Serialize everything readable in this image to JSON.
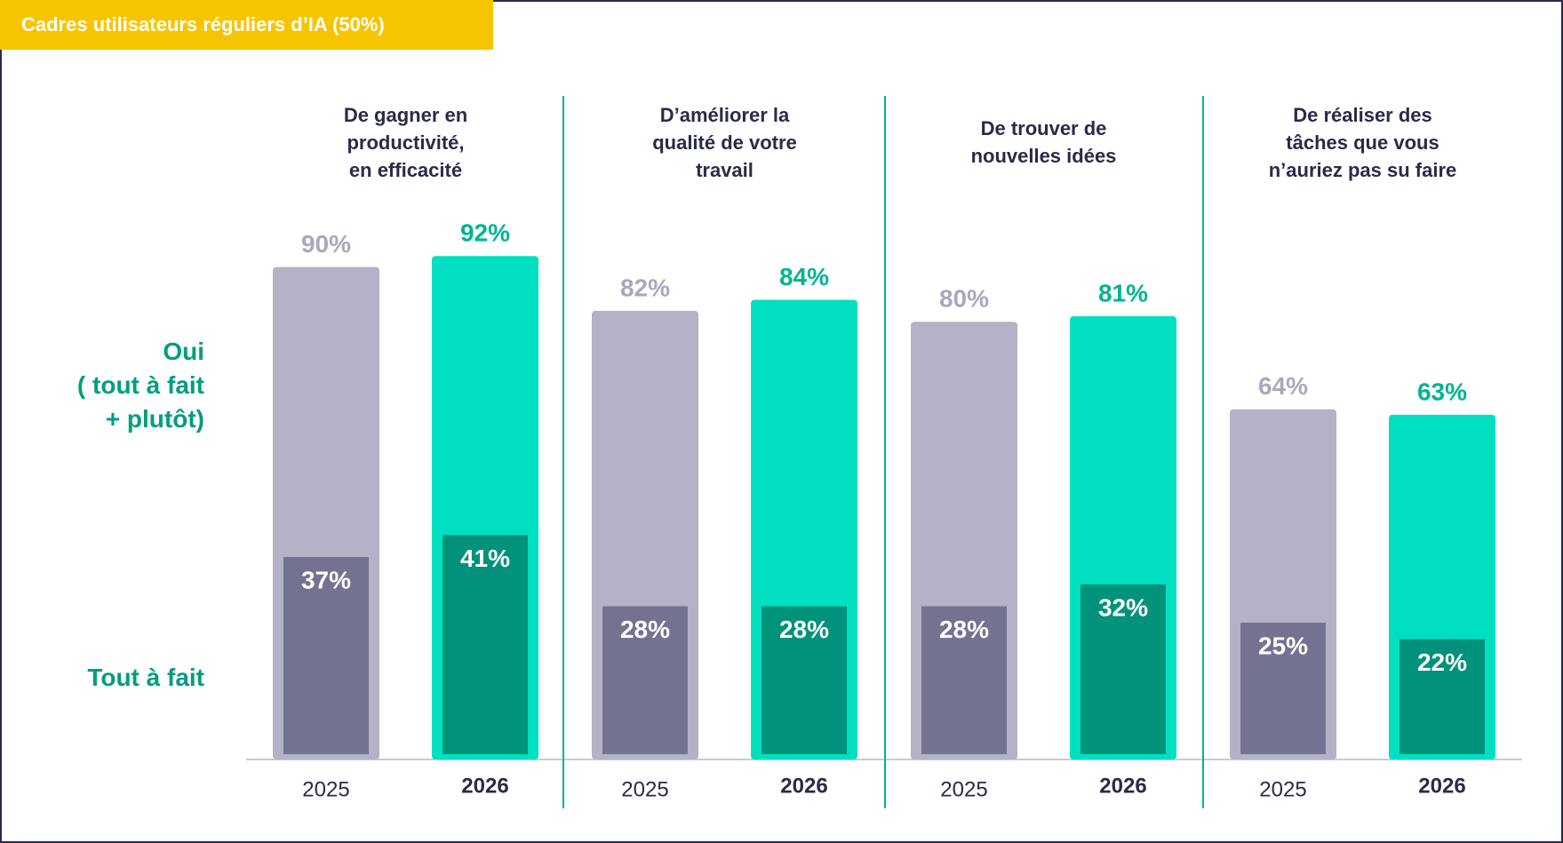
{
  "chart_data": {
    "type": "bar",
    "title": "Cadres utilisateurs réguliers d’IA (50%)",
    "categories": [
      "De gagner en\nproductivité,\nen efficacité",
      "D’améliorer la\nqualité de votre\ntravail",
      "De trouver de\nnouvelles idées",
      "De réaliser des\ntâches que vous\nn’auriez pas su faire"
    ],
    "measures": [
      "Oui\n( tout à fait\n+ plutôt)",
      "Tout à fait"
    ],
    "ylim": [
      0,
      100
    ],
    "series": [
      {
        "name": "2025",
        "color": "#b3b2c6",
        "inner_color": "#737391",
        "label_color": "#a9a8bf",
        "values": [
          90,
          82,
          80,
          64
        ],
        "value_labels": [
          "90%",
          "82%",
          "80%",
          "64%"
        ],
        "sub_values": [
          37,
          28,
          28,
          25
        ],
        "sub_value_labels": [
          "37%",
          "28%",
          "28%",
          "25%"
        ]
      },
      {
        "name": "2026",
        "color": "#00e0c0",
        "inner_color": "#00927a",
        "label_color": "#00b493",
        "values": [
          92,
          84,
          81,
          63
        ],
        "value_labels": [
          "92%",
          "84%",
          "81%",
          "63%"
        ],
        "sub_values": [
          41,
          28,
          32,
          22
        ],
        "sub_value_labels": [
          "41%",
          "28%",
          "32%",
          "22%"
        ]
      }
    ]
  }
}
